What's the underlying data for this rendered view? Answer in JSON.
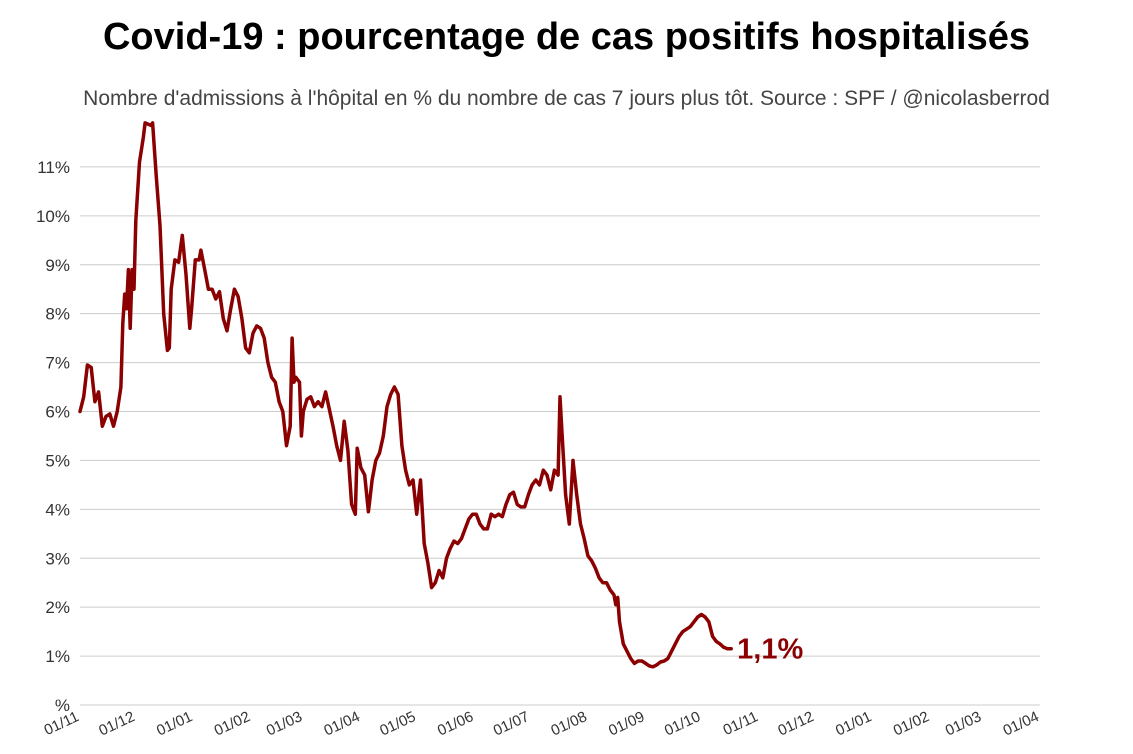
{
  "chart_data": {
    "type": "line",
    "title": "Covid-19 : pourcentage de cas positifs hospitalisés",
    "subtitle": "Nombre d'admissions à l'hôpital en % du nombre de cas 7 jours plus tôt. Source : SPF / @nicolasberrod",
    "xlabel": "",
    "ylabel": "",
    "ylim": [
      0,
      12
    ],
    "y_ticks": [
      {
        "value": 0,
        "label": "%"
      },
      {
        "value": 1,
        "label": "1%"
      },
      {
        "value": 2,
        "label": "2%"
      },
      {
        "value": 3,
        "label": "3%"
      },
      {
        "value": 4,
        "label": "4%"
      },
      {
        "value": 5,
        "label": "5%"
      },
      {
        "value": 6,
        "label": "6%"
      },
      {
        "value": 7,
        "label": "7%"
      },
      {
        "value": 8,
        "label": "8%"
      },
      {
        "value": 9,
        "label": "9%"
      },
      {
        "value": 10,
        "label": "10%"
      },
      {
        "value": 11,
        "label": "11%"
      }
    ],
    "x_ticks": [
      {
        "date": "2020-11-01",
        "label": "01/11"
      },
      {
        "date": "2020-12-01",
        "label": "01/12"
      },
      {
        "date": "2021-01-01",
        "label": "01/01"
      },
      {
        "date": "2021-02-01",
        "label": "01/02"
      },
      {
        "date": "2021-03-01",
        "label": "01/03"
      },
      {
        "date": "2021-04-01",
        "label": "01/04"
      },
      {
        "date": "2021-05-01",
        "label": "01/05"
      },
      {
        "date": "2021-06-01",
        "label": "01/06"
      },
      {
        "date": "2021-07-01",
        "label": "01/07"
      },
      {
        "date": "2021-08-01",
        "label": "01/08"
      },
      {
        "date": "2021-09-01",
        "label": "01/09"
      },
      {
        "date": "2021-10-01",
        "label": "01/10"
      },
      {
        "date": "2021-11-01",
        "label": "01/11"
      },
      {
        "date": "2021-12-01",
        "label": "01/12"
      },
      {
        "date": "2022-01-01",
        "label": "01/01"
      },
      {
        "date": "2022-02-01",
        "label": "01/02"
      },
      {
        "date": "2022-03-01",
        "label": "01/03"
      },
      {
        "date": "2022-04-01",
        "label": "01/04"
      }
    ],
    "grid": true,
    "legend": "none",
    "line_color": "#8b0000",
    "last_value_label": "1,1%",
    "series": [
      {
        "points": [
          [
            "2020-11-01",
            6.0
          ],
          [
            "2020-11-03",
            6.3
          ],
          [
            "2020-11-05",
            6.95
          ],
          [
            "2020-11-07",
            6.9
          ],
          [
            "2020-11-09",
            6.2
          ],
          [
            "2020-11-11",
            6.4
          ],
          [
            "2020-11-13",
            5.7
          ],
          [
            "2020-11-15",
            5.9
          ],
          [
            "2020-11-17",
            5.95
          ],
          [
            "2020-11-19",
            5.7
          ],
          [
            "2020-11-21",
            6.0
          ],
          [
            "2020-11-23",
            6.5
          ],
          [
            "2020-11-24",
            7.8
          ],
          [
            "2020-11-25",
            8.4
          ],
          [
            "2020-11-26",
            8.1
          ],
          [
            "2020-11-27",
            8.9
          ],
          [
            "2020-11-28",
            7.7
          ],
          [
            "2020-11-29",
            8.9
          ],
          [
            "2020-11-30",
            8.5
          ],
          [
            "2020-12-01",
            9.9
          ],
          [
            "2020-12-03",
            11.1
          ],
          [
            "2020-12-05",
            11.6
          ],
          [
            "2020-12-06",
            11.9
          ],
          [
            "2020-12-09",
            11.85
          ],
          [
            "2020-12-10",
            11.9
          ],
          [
            "2020-12-12",
            10.8
          ],
          [
            "2020-12-14",
            9.8
          ],
          [
            "2020-12-16",
            8.0
          ],
          [
            "2020-12-18",
            7.25
          ],
          [
            "2020-12-19",
            7.3
          ],
          [
            "2020-12-20",
            8.5
          ],
          [
            "2020-12-22",
            9.1
          ],
          [
            "2020-12-24",
            9.05
          ],
          [
            "2020-12-26",
            9.6
          ],
          [
            "2020-12-28",
            8.8
          ],
          [
            "2020-12-30",
            7.7
          ],
          [
            "2020-12-31",
            8.1
          ],
          [
            "2021-01-02",
            9.1
          ],
          [
            "2021-01-04",
            9.1
          ],
          [
            "2021-01-05",
            9.3
          ],
          [
            "2021-01-07",
            8.9
          ],
          [
            "2021-01-09",
            8.5
          ],
          [
            "2021-01-11",
            8.5
          ],
          [
            "2021-01-13",
            8.3
          ],
          [
            "2021-01-15",
            8.45
          ],
          [
            "2021-01-17",
            7.9
          ],
          [
            "2021-01-19",
            7.65
          ],
          [
            "2021-01-21",
            8.1
          ],
          [
            "2021-01-23",
            8.5
          ],
          [
            "2021-01-25",
            8.35
          ],
          [
            "2021-01-27",
            7.9
          ],
          [
            "2021-01-29",
            7.3
          ],
          [
            "2021-01-31",
            7.2
          ],
          [
            "2021-02-02",
            7.6
          ],
          [
            "2021-02-04",
            7.75
          ],
          [
            "2021-02-06",
            7.7
          ],
          [
            "2021-02-08",
            7.5
          ],
          [
            "2021-02-10",
            7.0
          ],
          [
            "2021-02-12",
            6.7
          ],
          [
            "2021-02-14",
            6.6
          ],
          [
            "2021-02-16",
            6.2
          ],
          [
            "2021-02-18",
            6.0
          ],
          [
            "2021-02-20",
            5.3
          ],
          [
            "2021-02-22",
            5.7
          ],
          [
            "2021-02-23",
            7.5
          ],
          [
            "2021-02-24",
            6.6
          ],
          [
            "2021-02-25",
            6.7
          ],
          [
            "2021-02-27",
            6.6
          ],
          [
            "2021-02-28",
            5.5
          ],
          [
            "2021-03-01",
            6.0
          ],
          [
            "2021-03-03",
            6.25
          ],
          [
            "2021-03-05",
            6.3
          ],
          [
            "2021-03-07",
            6.1
          ],
          [
            "2021-03-09",
            6.2
          ],
          [
            "2021-03-11",
            6.1
          ],
          [
            "2021-03-13",
            6.4
          ],
          [
            "2021-03-15",
            6.05
          ],
          [
            "2021-03-17",
            5.7
          ],
          [
            "2021-03-19",
            5.3
          ],
          [
            "2021-03-21",
            5.0
          ],
          [
            "2021-03-23",
            5.8
          ],
          [
            "2021-03-25",
            5.2
          ],
          [
            "2021-03-27",
            4.1
          ],
          [
            "2021-03-29",
            3.9
          ],
          [
            "2021-03-30",
            5.25
          ],
          [
            "2021-04-01",
            4.85
          ],
          [
            "2021-04-03",
            4.7
          ],
          [
            "2021-04-05",
            3.95
          ],
          [
            "2021-04-07",
            4.6
          ],
          [
            "2021-04-09",
            5.0
          ],
          [
            "2021-04-11",
            5.15
          ],
          [
            "2021-04-13",
            5.5
          ],
          [
            "2021-04-15",
            6.1
          ],
          [
            "2021-04-17",
            6.35
          ],
          [
            "2021-04-19",
            6.5
          ],
          [
            "2021-04-21",
            6.35
          ],
          [
            "2021-04-23",
            5.3
          ],
          [
            "2021-04-25",
            4.8
          ],
          [
            "2021-04-27",
            4.5
          ],
          [
            "2021-04-29",
            4.6
          ],
          [
            "2021-05-01",
            3.9
          ],
          [
            "2021-05-03",
            4.6
          ],
          [
            "2021-05-05",
            3.3
          ],
          [
            "2021-05-07",
            2.9
          ],
          [
            "2021-05-09",
            2.4
          ],
          [
            "2021-05-11",
            2.5
          ],
          [
            "2021-05-13",
            2.75
          ],
          [
            "2021-05-15",
            2.6
          ],
          [
            "2021-05-17",
            3.0
          ],
          [
            "2021-05-19",
            3.2
          ],
          [
            "2021-05-21",
            3.35
          ],
          [
            "2021-05-23",
            3.3
          ],
          [
            "2021-05-25",
            3.4
          ],
          [
            "2021-05-27",
            3.6
          ],
          [
            "2021-05-29",
            3.8
          ],
          [
            "2021-05-31",
            3.9
          ],
          [
            "2021-06-02",
            3.9
          ],
          [
            "2021-06-04",
            3.7
          ],
          [
            "2021-06-06",
            3.6
          ],
          [
            "2021-06-08",
            3.6
          ],
          [
            "2021-06-10",
            3.9
          ],
          [
            "2021-06-12",
            3.85
          ],
          [
            "2021-06-14",
            3.9
          ],
          [
            "2021-06-16",
            3.85
          ],
          [
            "2021-06-18",
            4.1
          ],
          [
            "2021-06-20",
            4.3
          ],
          [
            "2021-06-22",
            4.35
          ],
          [
            "2021-06-24",
            4.1
          ],
          [
            "2021-06-26",
            4.05
          ],
          [
            "2021-06-28",
            4.05
          ],
          [
            "2021-06-30",
            4.3
          ],
          [
            "2021-07-02",
            4.5
          ],
          [
            "2021-07-04",
            4.6
          ],
          [
            "2021-07-06",
            4.5
          ],
          [
            "2021-07-08",
            4.8
          ],
          [
            "2021-07-10",
            4.7
          ],
          [
            "2021-07-12",
            4.4
          ],
          [
            "2021-07-14",
            4.8
          ],
          [
            "2021-07-16",
            4.7
          ],
          [
            "2021-07-17",
            6.3
          ],
          [
            "2021-07-18",
            5.6
          ],
          [
            "2021-07-20",
            4.3
          ],
          [
            "2021-07-22",
            3.7
          ],
          [
            "2021-07-24",
            5.0
          ],
          [
            "2021-07-26",
            4.3
          ],
          [
            "2021-07-28",
            3.7
          ],
          [
            "2021-07-30",
            3.4
          ],
          [
            "2021-08-01",
            3.05
          ],
          [
            "2021-08-03",
            2.95
          ],
          [
            "2021-08-05",
            2.8
          ],
          [
            "2021-08-07",
            2.6
          ],
          [
            "2021-08-09",
            2.5
          ],
          [
            "2021-08-11",
            2.5
          ],
          [
            "2021-08-13",
            2.35
          ],
          [
            "2021-08-15",
            2.25
          ],
          [
            "2021-08-16",
            2.05
          ],
          [
            "2021-08-17",
            2.2
          ],
          [
            "2021-08-18",
            1.7
          ],
          [
            "2021-08-20",
            1.25
          ],
          [
            "2021-08-22",
            1.1
          ],
          [
            "2021-08-24",
            0.95
          ],
          [
            "2021-08-26",
            0.85
          ],
          [
            "2021-08-28",
            0.9
          ],
          [
            "2021-08-30",
            0.9
          ],
          [
            "2021-09-01",
            0.85
          ],
          [
            "2021-09-03",
            0.8
          ],
          [
            "2021-09-05",
            0.78
          ],
          [
            "2021-09-07",
            0.82
          ],
          [
            "2021-09-09",
            0.88
          ],
          [
            "2021-09-11",
            0.9
          ],
          [
            "2021-09-13",
            0.95
          ],
          [
            "2021-09-15",
            1.1
          ],
          [
            "2021-09-17",
            1.25
          ],
          [
            "2021-09-19",
            1.4
          ],
          [
            "2021-09-21",
            1.5
          ],
          [
            "2021-09-23",
            1.55
          ],
          [
            "2021-09-25",
            1.6
          ],
          [
            "2021-09-27",
            1.7
          ],
          [
            "2021-09-29",
            1.8
          ],
          [
            "2021-10-01",
            1.85
          ],
          [
            "2021-10-03",
            1.8
          ],
          [
            "2021-10-05",
            1.7
          ],
          [
            "2021-10-07",
            1.4
          ],
          [
            "2021-10-09",
            1.3
          ],
          [
            "2021-10-11",
            1.25
          ],
          [
            "2021-10-13",
            1.18
          ],
          [
            "2021-10-15",
            1.15
          ],
          [
            "2021-10-17",
            1.15
          ]
        ],
        "name_hint": ""
      }
    ]
  }
}
